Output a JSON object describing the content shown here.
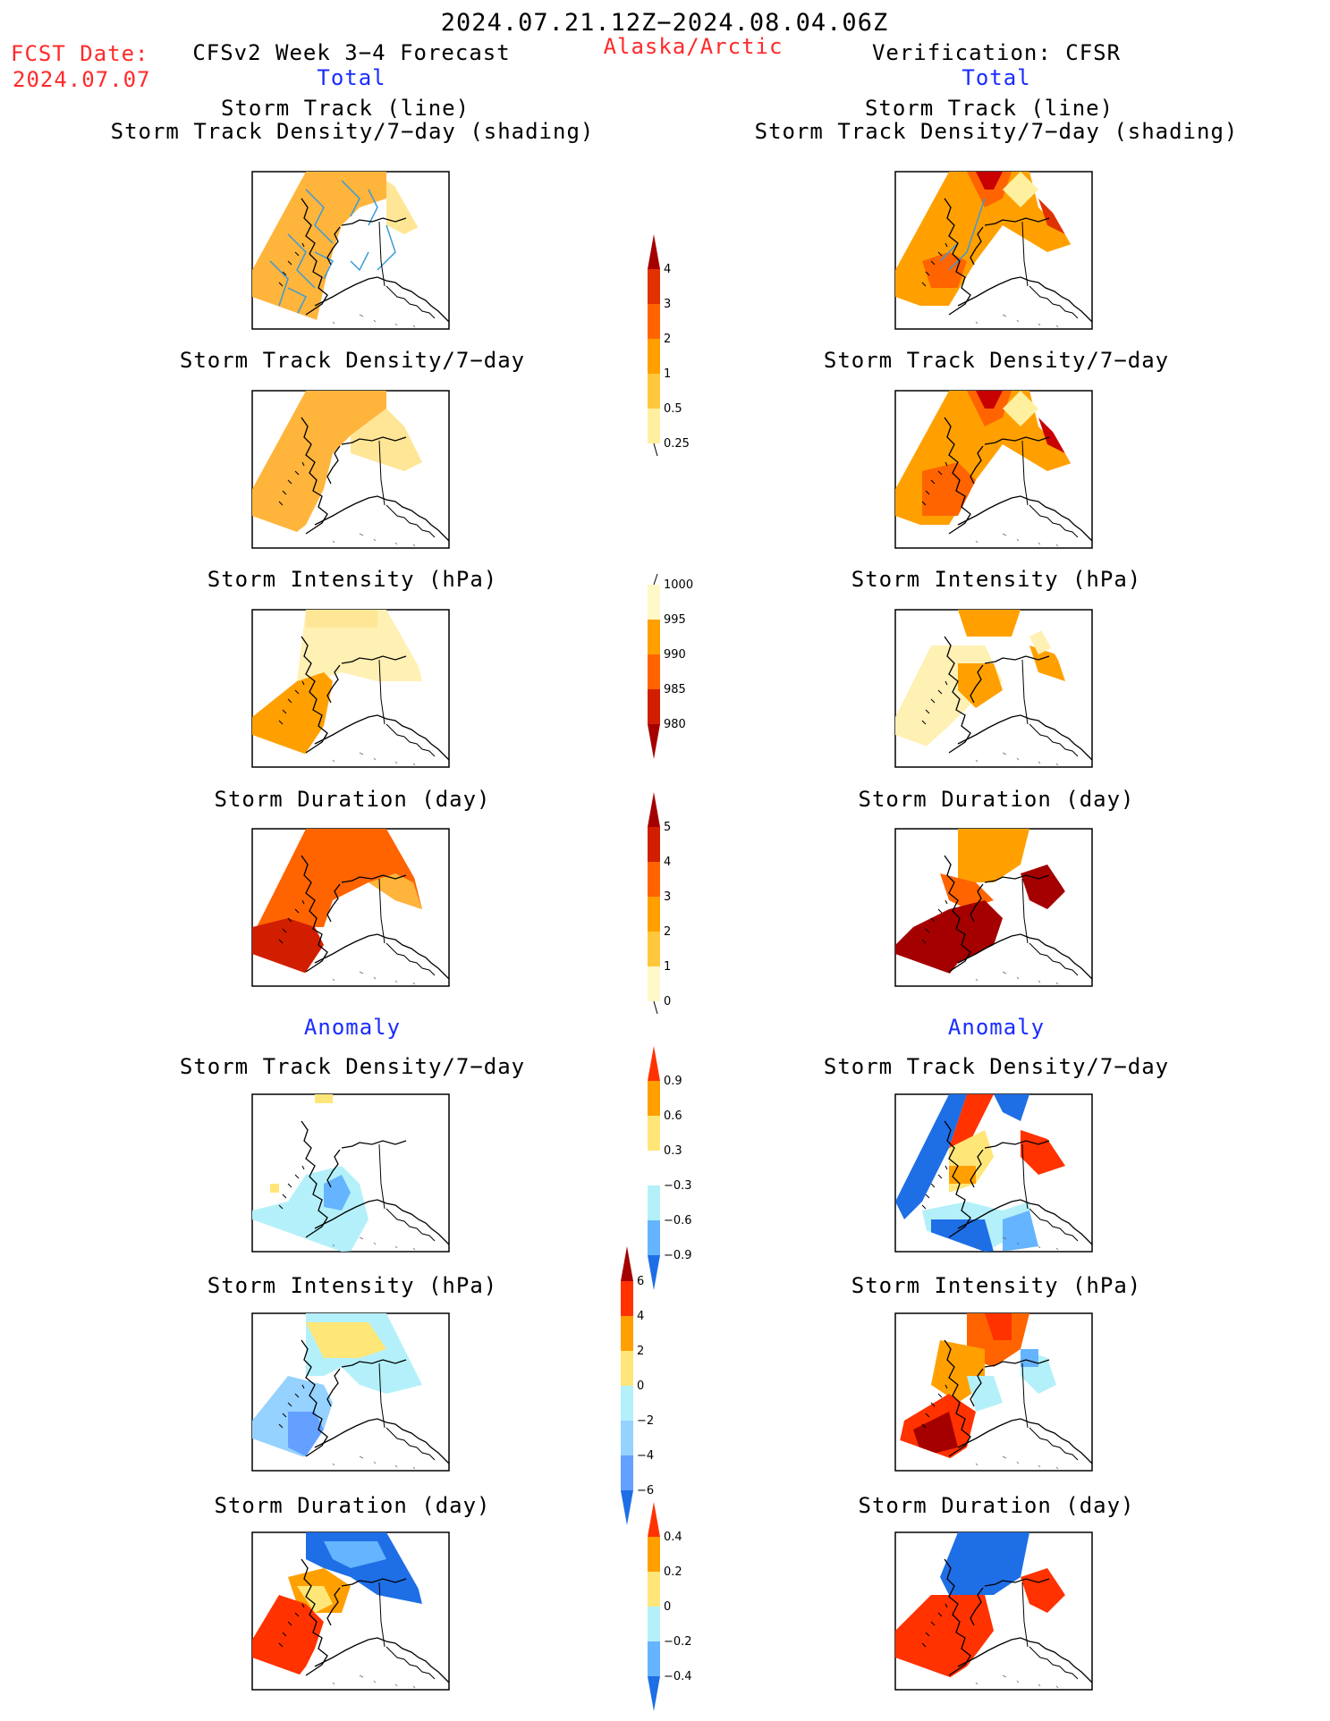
{
  "header": {
    "period": "2024.07.21.12Z−2024.08.04.06Z",
    "fcst_label": "FCST Date:",
    "fcst_date": "2024.07.07",
    "forecast_title": "CFSv2 Week 3−4 Forecast",
    "region": "Alaska/Arctic",
    "verification": "Verification: CFSR",
    "total_left": "Total",
    "total_right": "Total",
    "anomaly_left": "Anomaly",
    "anomaly_right": "Anomaly"
  },
  "panels": {
    "p1_title_a": "Storm Track (line)",
    "p1_title_b": "Storm Track Density/7−day (shading)",
    "p2_title": "Storm Track Density/7−day",
    "p3_title": "Storm Intensity (hPa)",
    "p4_title": "Storm Duration (day)",
    "p5_title": "Storm Track Density/7−day",
    "p6_title": "Storm Intensity (hPa)",
    "p7_title": "Storm Duration (day)"
  },
  "colorbars": {
    "density": {
      "labels": [
        "4",
        "3",
        "2",
        "1",
        "0.5",
        "0.25"
      ],
      "colors": [
        "#a50000",
        "#e03200",
        "#ff6400",
        "#ffa000",
        "#ffc83c",
        "#fff0a0"
      ]
    },
    "intensity": {
      "labels": [
        "1000",
        "995",
        "990",
        "985",
        "980"
      ],
      "colors": [
        "#fff8c8",
        "#ffa000",
        "#ff6400",
        "#d21e00",
        "#a50000"
      ]
    },
    "duration": {
      "labels": [
        "5",
        "4",
        "3",
        "2",
        "1",
        "0"
      ],
      "colors": [
        "#a50000",
        "#d21e00",
        "#ff6400",
        "#ffa000",
        "#ffc83c",
        "#fff8c8"
      ]
    },
    "density_anom": {
      "labels": [
        "0.9",
        "0.6",
        "0.3",
        "−0.3",
        "−0.6",
        "−0.9"
      ],
      "colors": [
        "#ff3200",
        "#ffa000",
        "#ffe678",
        "#ffffff",
        "#b4f0fa",
        "#64b4ff",
        "#1e6ee6"
      ]
    },
    "intensity_anom": {
      "labels": [
        "6",
        "4",
        "2",
        "0",
        "−2",
        "−4",
        "−6"
      ],
      "colors": [
        "#a50000",
        "#ff3200",
        "#ffa000",
        "#ffe678",
        "#b4f0fa",
        "#96d2ff",
        "#64a0ff",
        "#1e6ee6"
      ]
    },
    "duration_anom": {
      "labels": [
        "0.4",
        "0.2",
        "0",
        "−0.2",
        "−0.4"
      ],
      "colors": [
        "#ff3200",
        "#ffa000",
        "#ffe678",
        "#b4f0fa",
        "#64b4ff",
        "#1e6ee6"
      ]
    }
  },
  "map_colors": {
    "forecast_density": "#ffb43c",
    "forecast_density_light": "#ffe696",
    "track_line": "#3c9bd7",
    "cfsr_dark": "#c80000",
    "cfsr_mid": "#ff6400",
    "cfsr_orange": "#ffa000",
    "cfsr_light": "#fff0a0",
    "blue_dark": "#1e6ee6",
    "blue_light": "#b4f0fa"
  }
}
